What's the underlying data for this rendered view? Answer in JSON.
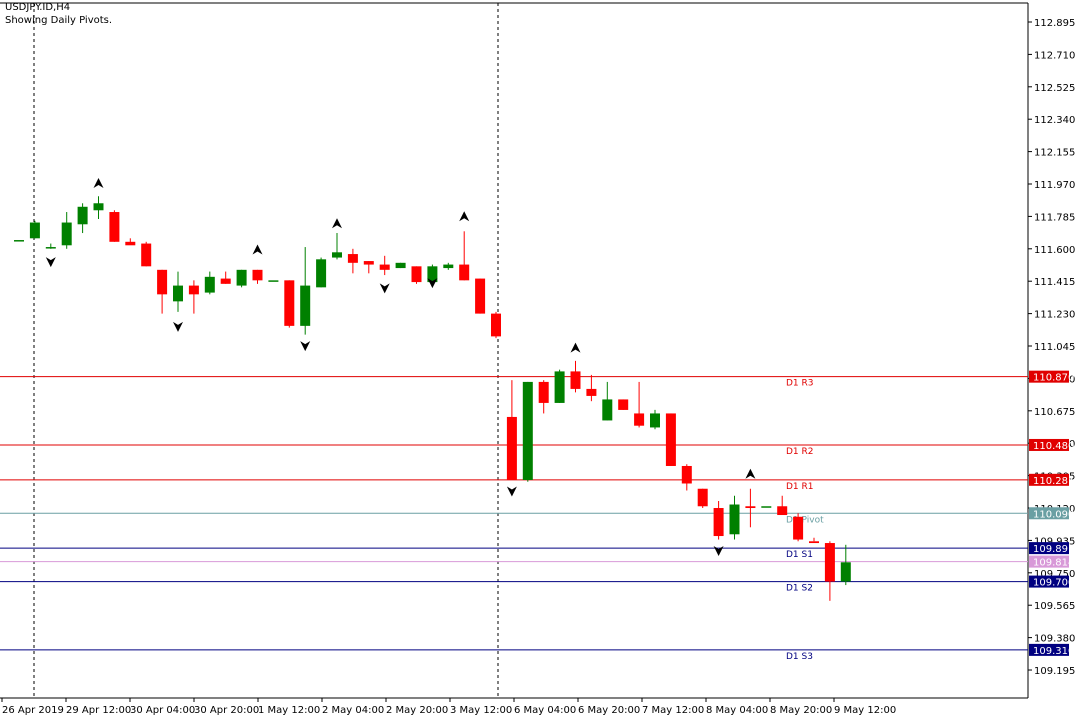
{
  "header": {
    "symbol": "USDJPY.ID,H4",
    "subtitle": "Showing Daily Pivots."
  },
  "colors": {
    "bull": "#008000",
    "bear": "#ff0000",
    "resistance": "#e00000",
    "pivot": "#6a9fa3",
    "support": "#000080",
    "s1_alt": "#d899d8",
    "grid_text": "#000000"
  },
  "chart_data": {
    "type": "candlestick",
    "symbol": "USDJPY.ID",
    "timeframe": "H4",
    "ylim": [
      109.1,
      112.98
    ],
    "y_ticks": [
      "112.895",
      "112.710",
      "112.525",
      "112.340",
      "112.155",
      "111.970",
      "111.785",
      "111.600",
      "111.415",
      "111.230",
      "111.045",
      "110.860",
      "110.675",
      "110.490",
      "110.305",
      "110.120",
      "109.935",
      "109.750",
      "109.565",
      "109.380",
      "109.195"
    ],
    "x_labels": [
      "26 Apr 2019",
      "29 Apr 12:00",
      "30 Apr 04:00",
      "30 Apr 20:00",
      "1 May 12:00",
      "2 May 04:00",
      "2 May 20:00",
      "3 May 12:00",
      "6 May 04:00",
      "6 May 20:00",
      "7 May 12:00",
      "8 May 04:00",
      "8 May 20:00",
      "9 May 12:00"
    ],
    "candles": [
      {
        "o": 111.65,
        "h": 111.65,
        "l": 111.65,
        "c": 111.65
      },
      {
        "o": 111.66,
        "h": 111.76,
        "l": 111.66,
        "c": 111.75
      },
      {
        "o": 111.61,
        "h": 111.63,
        "l": 111.6,
        "c": 111.61
      },
      {
        "o": 111.62,
        "h": 111.81,
        "l": 111.6,
        "c": 111.75
      },
      {
        "o": 111.74,
        "h": 111.86,
        "l": 111.69,
        "c": 111.84
      },
      {
        "o": 111.82,
        "h": 111.9,
        "l": 111.77,
        "c": 111.86
      },
      {
        "o": 111.81,
        "h": 111.82,
        "l": 111.64,
        "c": 111.64
      },
      {
        "o": 111.64,
        "h": 111.66,
        "l": 111.63,
        "c": 111.62
      },
      {
        "o": 111.63,
        "h": 111.64,
        "l": 111.5,
        "c": 111.5
      },
      {
        "o": 111.48,
        "h": 111.48,
        "l": 111.23,
        "c": 111.34
      },
      {
        "o": 111.3,
        "h": 111.47,
        "l": 111.24,
        "c": 111.39
      },
      {
        "o": 111.39,
        "h": 111.42,
        "l": 111.23,
        "c": 111.34
      },
      {
        "o": 111.35,
        "h": 111.47,
        "l": 111.34,
        "c": 111.44
      },
      {
        "o": 111.43,
        "h": 111.47,
        "l": 111.4,
        "c": 111.4
      },
      {
        "o": 111.39,
        "h": 111.48,
        "l": 111.38,
        "c": 111.48
      },
      {
        "o": 111.48,
        "h": 111.48,
        "l": 111.4,
        "c": 111.42
      },
      {
        "o": 111.42,
        "h": 111.42,
        "l": 111.42,
        "c": 111.42
      },
      {
        "o": 111.42,
        "h": 111.42,
        "l": 111.15,
        "c": 111.16
      },
      {
        "o": 111.16,
        "h": 111.61,
        "l": 111.11,
        "c": 111.39
      },
      {
        "o": 111.38,
        "h": 111.55,
        "l": 111.38,
        "c": 111.54
      },
      {
        "o": 111.55,
        "h": 111.69,
        "l": 111.54,
        "c": 111.58
      },
      {
        "o": 111.57,
        "h": 111.6,
        "l": 111.46,
        "c": 111.52
      },
      {
        "o": 111.53,
        "h": 111.53,
        "l": 111.46,
        "c": 111.51
      },
      {
        "o": 111.51,
        "h": 111.56,
        "l": 111.45,
        "c": 111.48
      },
      {
        "o": 111.49,
        "h": 111.52,
        "l": 111.49,
        "c": 111.52
      },
      {
        "o": 111.5,
        "h": 111.5,
        "l": 111.4,
        "c": 111.41
      },
      {
        "o": 111.41,
        "h": 111.51,
        "l": 111.41,
        "c": 111.5
      },
      {
        "o": 111.49,
        "h": 111.52,
        "l": 111.48,
        "c": 111.51
      },
      {
        "o": 111.51,
        "h": 111.7,
        "l": 111.42,
        "c": 111.42
      },
      {
        "o": 111.43,
        "h": 111.43,
        "l": 111.23,
        "c": 111.23
      },
      {
        "o": 111.23,
        "h": 111.24,
        "l": 111.09,
        "c": 111.1
      },
      {
        "o": 110.64,
        "h": 110.85,
        "l": 110.28,
        "c": 110.28
      },
      {
        "o": 110.28,
        "h": 110.84,
        "l": 110.27,
        "c": 110.84
      },
      {
        "o": 110.84,
        "h": 110.85,
        "l": 110.66,
        "c": 110.72
      },
      {
        "o": 110.72,
        "h": 110.91,
        "l": 110.72,
        "c": 110.9
      },
      {
        "o": 110.9,
        "h": 110.96,
        "l": 110.78,
        "c": 110.8
      },
      {
        "o": 110.8,
        "h": 110.88,
        "l": 110.73,
        "c": 110.76
      },
      {
        "o": 110.62,
        "h": 110.84,
        "l": 110.62,
        "c": 110.74
      },
      {
        "o": 110.74,
        "h": 110.74,
        "l": 110.68,
        "c": 110.68
      },
      {
        "o": 110.66,
        "h": 110.84,
        "l": 110.58,
        "c": 110.59
      },
      {
        "o": 110.58,
        "h": 110.68,
        "l": 110.57,
        "c": 110.66
      },
      {
        "o": 110.66,
        "h": 110.66,
        "l": 110.36,
        "c": 110.36
      },
      {
        "o": 110.36,
        "h": 110.37,
        "l": 110.22,
        "c": 110.26
      },
      {
        "o": 110.23,
        "h": 110.23,
        "l": 110.12,
        "c": 110.13
      },
      {
        "o": 110.12,
        "h": 110.16,
        "l": 109.94,
        "c": 109.96
      },
      {
        "o": 109.97,
        "h": 110.19,
        "l": 109.94,
        "c": 110.14
      },
      {
        "o": 110.13,
        "h": 110.23,
        "l": 110.01,
        "c": 110.12
      },
      {
        "o": 110.13,
        "h": 110.13,
        "l": 110.13,
        "c": 110.13
      },
      {
        "o": 110.13,
        "h": 110.19,
        "l": 110.09,
        "c": 110.08
      },
      {
        "o": 110.07,
        "h": 110.09,
        "l": 109.93,
        "c": 109.94
      },
      {
        "o": 109.93,
        "h": 109.95,
        "l": 109.93,
        "c": 109.92
      },
      {
        "o": 109.92,
        "h": 109.93,
        "l": 109.59,
        "c": 109.7
      },
      {
        "o": 109.7,
        "h": 109.91,
        "l": 109.68,
        "c": 109.81
      }
    ],
    "fractals_up": [
      {
        "i": 5,
        "y": 111.97
      },
      {
        "i": 15,
        "y": 111.59
      },
      {
        "i": 20,
        "y": 111.74
      },
      {
        "i": 28,
        "y": 111.78
      },
      {
        "i": 35,
        "y": 111.03
      },
      {
        "i": 46,
        "y": 110.31
      }
    ],
    "fractals_down": [
      {
        "i": 2,
        "y": 111.53
      },
      {
        "i": 10,
        "y": 111.16
      },
      {
        "i": 18,
        "y": 111.05
      },
      {
        "i": 23,
        "y": 111.38
      },
      {
        "i": 26,
        "y": 111.41
      },
      {
        "i": 31,
        "y": 110.22
      },
      {
        "i": 44,
        "y": 109.88
      }
    ],
    "pivots": [
      {
        "name": "D1 R3",
        "value": "110.870",
        "kind": "resistance"
      },
      {
        "name": "D1 R2",
        "value": "110.480",
        "kind": "resistance"
      },
      {
        "name": "D1 R1",
        "value": "110.281",
        "kind": "resistance"
      },
      {
        "name": "D1 Pivot",
        "value": "110.090",
        "kind": "pivot"
      },
      {
        "name": "D1 S1",
        "value": "109.891",
        "kind": "support"
      },
      {
        "name": "",
        "value": "109.814",
        "kind": "s1_alt"
      },
      {
        "name": "D1 S2",
        "value": "109.700",
        "kind": "support"
      },
      {
        "name": "D1 S3",
        "value": "109.310",
        "kind": "support"
      }
    ],
    "session_separators": [
      "26 Apr 2019",
      "3 May 12:00"
    ]
  }
}
